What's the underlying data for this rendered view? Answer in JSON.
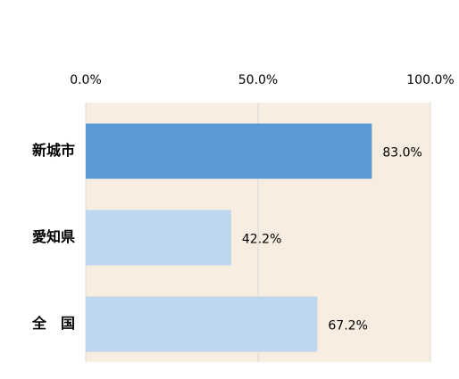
{
  "chart_data": {
    "type": "bar",
    "orientation": "horizontal",
    "categories": [
      "新城市",
      "愛知県",
      "全　国"
    ],
    "values": [
      83.0,
      42.2,
      67.2
    ],
    "value_labels": [
      "83.0%",
      "42.2%",
      "67.2%"
    ],
    "colors": [
      "#5b9bd5",
      "#bdd7ee",
      "#bdd7ee"
    ],
    "xlim": [
      0,
      100
    ],
    "xticks": [
      {
        "value": 0,
        "label": "0.0%"
      },
      {
        "value": 50,
        "label": "50.0%"
      },
      {
        "value": 100,
        "label": "100.0%"
      }
    ],
    "grid": true,
    "background": "#f7ede1"
  }
}
